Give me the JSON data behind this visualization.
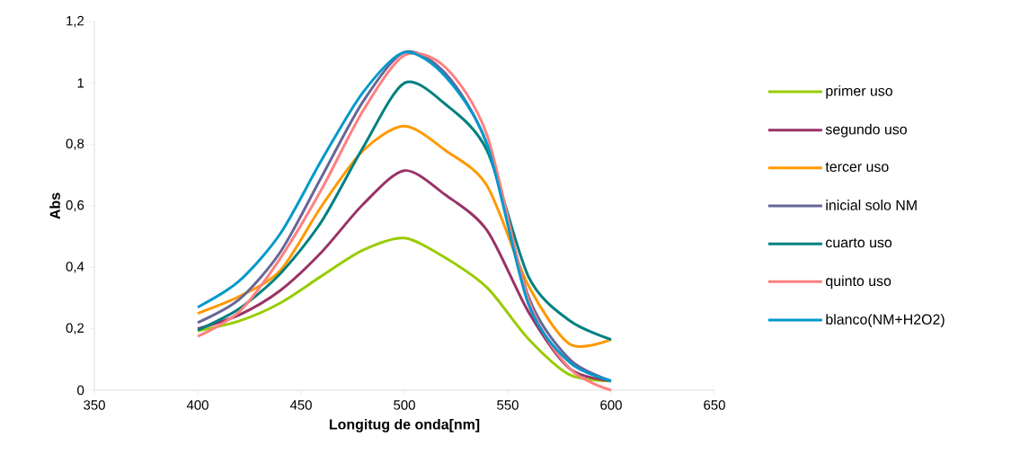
{
  "chart_data": {
    "type": "line",
    "xlabel": "Longitug de onda[nm]",
    "ylabel": "Abs",
    "x": [
      400,
      420,
      440,
      460,
      480,
      500,
      520,
      540,
      560,
      580,
      600
    ],
    "xlim": [
      350,
      650
    ],
    "xticks": [
      350,
      400,
      450,
      500,
      550,
      600,
      650
    ],
    "ylim": [
      0,
      1.2
    ],
    "yticks": [
      0,
      {
        "value": 0.2,
        "label": "0,2"
      },
      {
        "value": 0.4,
        "label": "0,4"
      },
      {
        "value": 0.6,
        "label": "0,6"
      },
      {
        "value": 0.8,
        "label": "0,8"
      },
      1,
      {
        "value": 1.2,
        "label": "1,2"
      }
    ],
    "legend": "right",
    "grid": false,
    "marker": "none",
    "line_style": "solid",
    "series": [
      {
        "name": "primer uso",
        "color": "#99cc00",
        "values": [
          0.193,
          0.225,
          0.284,
          0.372,
          0.456,
          0.495,
          0.43,
          0.334,
          0.167,
          0.05,
          0.03
        ]
      },
      {
        "name": "segundo uso",
        "color": "#993366",
        "values": [
          0.2,
          0.245,
          0.325,
          0.45,
          0.605,
          0.715,
          0.635,
          0.52,
          0.255,
          0.07,
          0.03
        ]
      },
      {
        "name": "tercer uso",
        "color": "#ff9900",
        "values": [
          0.25,
          0.305,
          0.39,
          0.6,
          0.78,
          0.86,
          0.78,
          0.665,
          0.34,
          0.15,
          0.165
        ]
      },
      {
        "name": "inicial solo NM",
        "color": "#666699",
        "values": [
          0.22,
          0.295,
          0.45,
          0.695,
          0.94,
          1.1,
          1.03,
          0.8,
          0.305,
          0.1,
          0.03
        ]
      },
      {
        "name": "cuarto uso",
        "color": "#008080",
        "values": [
          0.195,
          0.265,
          0.38,
          0.55,
          0.79,
          1.0,
          0.93,
          0.78,
          0.37,
          0.226,
          0.165
        ]
      },
      {
        "name": "quinto uso",
        "color": "#ff8080",
        "values": [
          0.175,
          0.255,
          0.43,
          0.655,
          0.91,
          1.09,
          1.05,
          0.83,
          0.295,
          0.07,
          0.0
        ]
      },
      {
        "name": "blanco(NM+H2O2)",
        "color": "#0099cc",
        "values": [
          0.27,
          0.355,
          0.51,
          0.75,
          0.97,
          1.1,
          1.02,
          0.8,
          0.28,
          0.09,
          0.03
        ]
      }
    ]
  }
}
